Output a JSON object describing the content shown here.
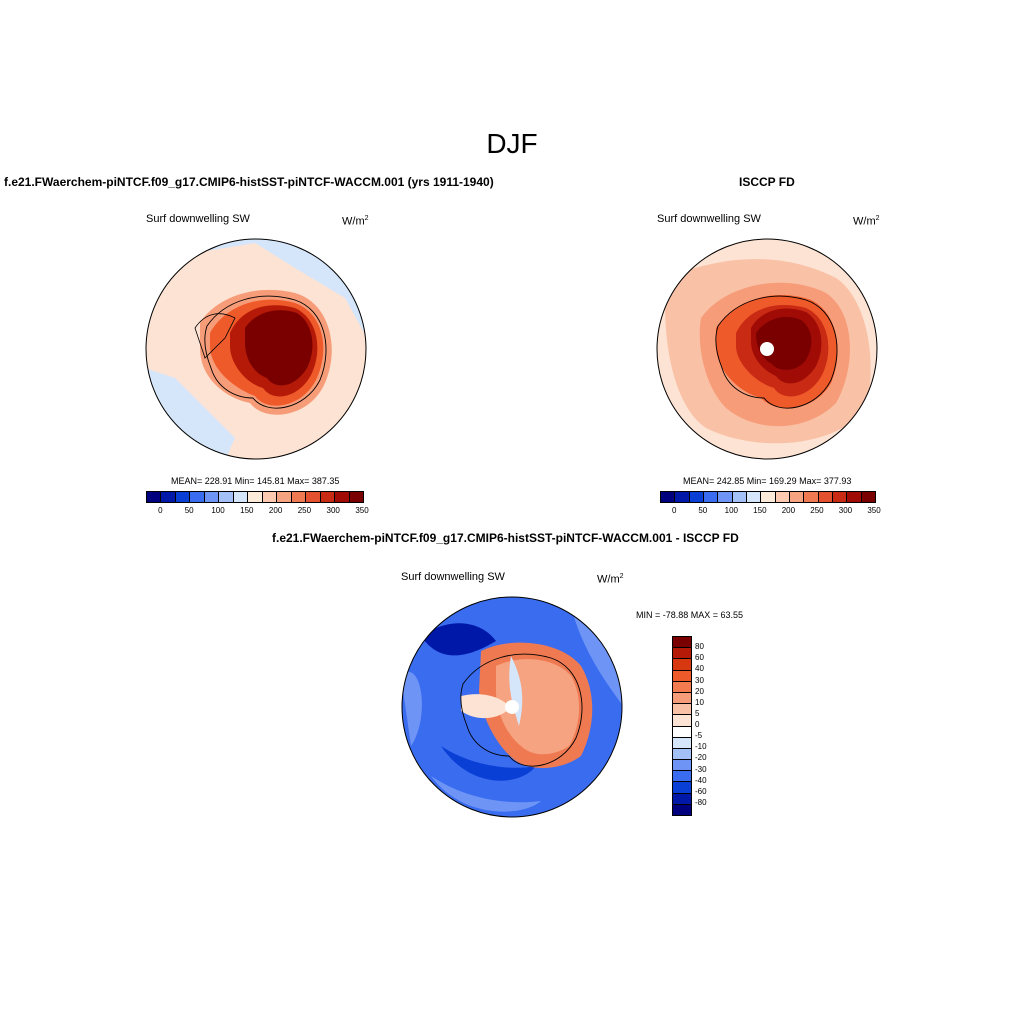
{
  "season": "DJF",
  "panels": {
    "model": {
      "header": "f.e21.FWaerchem-piNTCF.f09_g17.CMIP6-histSST-piNTCF-WACCM.001 (yrs 1911-1940)",
      "variable": "Surf downwelling SW",
      "units": "W/m",
      "units_sup": "2",
      "stats": "MEAN= 228.91  Min= 145.81  Max= 387.35"
    },
    "obs": {
      "header": "ISCCP FD",
      "variable": "Surf downwelling SW",
      "units": "W/m",
      "units_sup": "2",
      "stats": "MEAN= 242.85  Min= 169.29  Max= 377.93"
    },
    "diff": {
      "header": "f.e21.FWaerchem-piNTCF.f09_g17.CMIP6-histSST-piNTCF-WACCM.001 - ISCCP FD",
      "variable": "Surf downwelling SW",
      "units": "W/m",
      "units_sup": "2",
      "stats": "MIN = -78.88 MAX =  63.55"
    }
  },
  "colorbar_abs": {
    "ticks": [
      "0",
      "50",
      "100",
      "150",
      "200",
      "250",
      "300",
      "350"
    ],
    "colors": [
      "#00007f",
      "#0018a8",
      "#0a3fd6",
      "#3a6cf0",
      "#6e95f5",
      "#a3c0f7",
      "#d5e6fb",
      "#fdebda",
      "#fbcab0",
      "#f6a381",
      "#ef7a52",
      "#e4512f",
      "#c92a13",
      "#a10b05",
      "#7a0000"
    ]
  },
  "colorbar_diff": {
    "ticks": [
      "80",
      "60",
      "40",
      "30",
      "20",
      "10",
      "5",
      "0",
      "-5",
      "-10",
      "-20",
      "-30",
      "-40",
      "-60",
      "-80"
    ],
    "colors": [
      "#7a0000",
      "#b41a07",
      "#d8380f",
      "#ef5a2a",
      "#f47b50",
      "#f79c78",
      "#f9c1a6",
      "#fde3d3",
      "#ffffff",
      "#d5e6fb",
      "#a3c0f7",
      "#6e95f5",
      "#3a6cf0",
      "#0a3fd6",
      "#0018a8",
      "#00007f"
    ]
  }
}
